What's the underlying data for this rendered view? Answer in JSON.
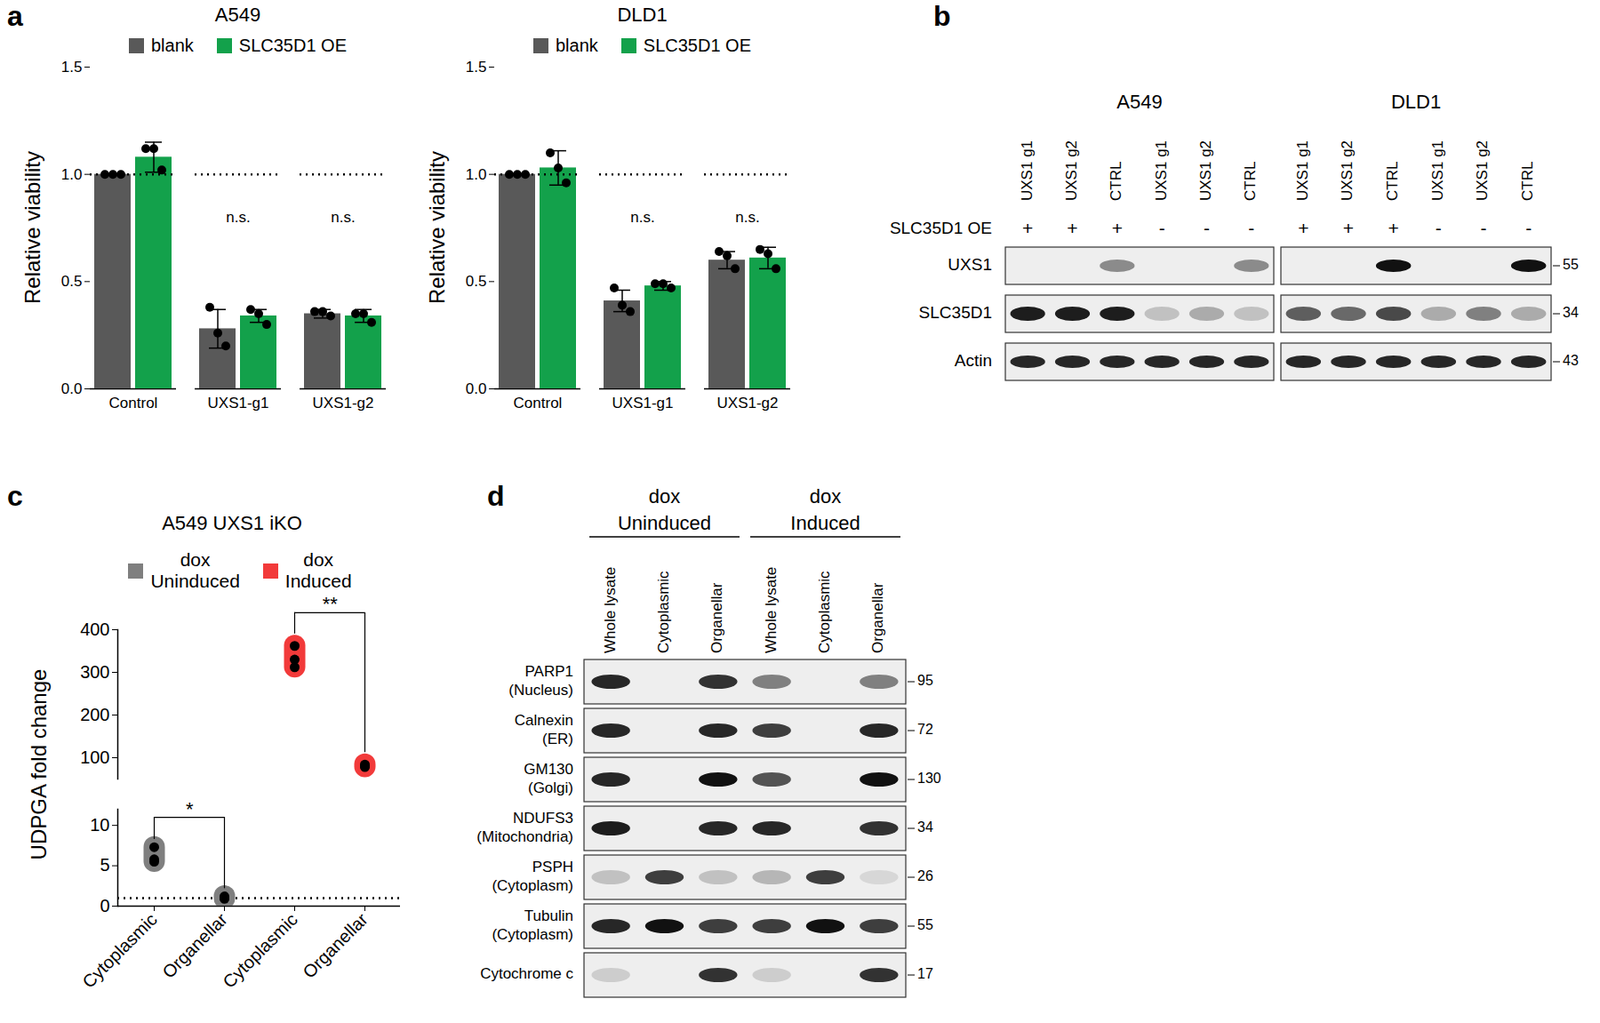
{
  "panels": [
    "a",
    "b",
    "c",
    "d"
  ],
  "chart_data": [
    {
      "type": "bar",
      "title": "A549",
      "legend": "top",
      "categories": [
        "Control",
        "UXS1-g1",
        "UXS1-g2"
      ],
      "series": [
        {
          "name": "blank",
          "color": "#595959",
          "values": [
            1.0,
            0.28,
            0.35
          ],
          "errors": [
            0,
            0.09,
            0.02
          ],
          "points": [
            [
              1,
              1,
              1
            ],
            [
              0.38,
              0.26,
              0.2
            ],
            [
              0.36,
              0.36,
              0.34
            ]
          ]
        },
        {
          "name": "SLC35D1 OE",
          "color": "#13a14b",
          "values": [
            1.08,
            0.34,
            0.34
          ],
          "errors": [
            0.07,
            0.03,
            0.03
          ],
          "points": [
            [
              1.12,
              1.12,
              1.02
            ],
            [
              0.37,
              0.35,
              0.3
            ],
            [
              0.35,
              0.35,
              0.31
            ]
          ]
        }
      ],
      "y_label": "Relative viability",
      "ylim": [
        0,
        1.5
      ],
      "yticks": [
        {
          "value": 0,
          "label": "0.0"
        },
        {
          "value": 0.5,
          "label": "0.5"
        },
        {
          "value": 1,
          "label": "1.0"
        },
        {
          "value": 1.5,
          "label": "1.5"
        }
      ],
      "reference_line": 1,
      "annotations": [
        {
          "text": "n.s.",
          "category": "UXS1-g1",
          "y": 0.8
        },
        {
          "text": "n.s.",
          "category": "UXS1-g2",
          "y": 0.8
        }
      ]
    },
    {
      "type": "bar",
      "title": "DLD1",
      "legend": "top",
      "categories": [
        "Control",
        "UXS1-g1",
        "UXS1-g2"
      ],
      "series": [
        {
          "name": "blank",
          "color": "#595959",
          "values": [
            1.0,
            0.41,
            0.6
          ],
          "errors": [
            0,
            0.05,
            0.04
          ],
          "points": [
            [
              1,
              1,
              1
            ],
            [
              0.47,
              0.39,
              0.36
            ],
            [
              0.64,
              0.62,
              0.56
            ]
          ]
        },
        {
          "name": "SLC35D1 OE",
          "color": "#13a14b",
          "values": [
            1.03,
            0.48,
            0.61
          ],
          "errors": [
            0.08,
            0.02,
            0.05
          ],
          "points": [
            [
              1.1,
              1.03,
              0.96
            ],
            [
              0.49,
              0.49,
              0.47
            ],
            [
              0.65,
              0.63,
              0.56
            ]
          ]
        }
      ],
      "y_label": "Relative viability",
      "ylim": [
        0,
        1.5
      ],
      "yticks": [
        {
          "value": 0,
          "label": "0.0"
        },
        {
          "value": 0.5,
          "label": "0.5"
        },
        {
          "value": 1,
          "label": "1.0"
        },
        {
          "value": 1.5,
          "label": "1.5"
        }
      ],
      "reference_line": 1,
      "annotations": [
        {
          "text": "n.s.",
          "category": "UXS1-g1",
          "y": 0.8
        },
        {
          "text": "n.s.",
          "category": "UXS1-g2",
          "y": 0.8
        }
      ]
    },
    {
      "type": "violin",
      "title": "A549 UXS1 iKO",
      "legend": "top",
      "categories": [
        "Cytoplasmic",
        "Organellar",
        "Cytoplasmic",
        "Organellar"
      ],
      "series": [
        {
          "name": "dox Uninduced",
          "color": "#7f7f7f",
          "points": [
            [
              7.3,
              5.8,
              5.5
            ],
            [
              1.2,
              1.0,
              0.9
            ],
            null,
            null
          ]
        },
        {
          "name": "dox Induced",
          "color": "#f23a3a",
          "points": [
            null,
            null,
            [
              362,
              330,
              312
            ],
            [
              78,
              80,
              84
            ]
          ]
        }
      ],
      "y_label": "UDPGA fold change",
      "segments": [
        {
          "ylim": [
            0,
            12
          ],
          "yticks": [
            0,
            5,
            10
          ]
        },
        {
          "ylim": [
            50,
            400
          ],
          "yticks": [
            100,
            200,
            300,
            400
          ]
        }
      ],
      "reference_line": 1,
      "annotations": [
        {
          "text": "*",
          "x": [
            0,
            1
          ],
          "y": 11
        },
        {
          "text": "**",
          "x": [
            2,
            3
          ],
          "y": 440
        }
      ]
    }
  ],
  "blots": [
    {
      "groups": [
        {
          "title": "A549",
          "lanes": [
            "UXS1 g1",
            "UXS1 g2",
            "CTRL",
            "UXS1 g1",
            "UXS1 g2",
            "CTRL"
          ],
          "bands": [
            [
              0,
              0,
              0.45,
              0,
              0,
              0.45
            ],
            [
              0.95,
              0.95,
              0.95,
              0.2,
              0.3,
              0.2
            ],
            [
              0.9,
              0.9,
              0.9,
              0.9,
              0.9,
              0.9
            ]
          ]
        },
        {
          "title": "DLD1",
          "lanes": [
            "UXS1 g1",
            "UXS1 g2",
            "CTRL",
            "UXS1 g1",
            "UXS1 g2",
            "CTRL"
          ],
          "bands": [
            [
              0,
              0,
              1,
              0,
              0,
              1
            ],
            [
              0.65,
              0.6,
              0.75,
              0.3,
              0.5,
              0.3
            ],
            [
              0.9,
              0.9,
              0.9,
              0.9,
              0.9,
              0.9
            ]
          ]
        }
      ],
      "condition": {
        "label": "SLC35D1 OE",
        "values": [
          "+",
          "+",
          "+",
          "-",
          "-",
          "-"
        ]
      },
      "rows": [
        "UXS1",
        "SLC35D1",
        "Actin"
      ],
      "markers": [
        55,
        34,
        43
      ]
    },
    {
      "headers": [
        {
          "text": [
            "dox",
            "Uninduced"
          ],
          "lanes": [
            0,
            1,
            2
          ]
        },
        {
          "text": [
            "dox",
            "Induced"
          ],
          "lanes": [
            3,
            4,
            5
          ]
        }
      ],
      "lanes": [
        "Whole lysate",
        "Cytoplasmic",
        "Organellar",
        "Whole lysate",
        "Cytoplasmic",
        "Organellar"
      ],
      "rows": [
        {
          "label": [
            "PARP1",
            "(Nucleus)"
          ],
          "marker": 95,
          "bands": [
            0.9,
            0,
            0.85,
            0.5,
            0,
            0.5
          ]
        },
        {
          "label": [
            "Calnexin",
            "(ER)"
          ],
          "marker": 72,
          "bands": [
            0.9,
            0,
            0.9,
            0.8,
            0,
            0.9
          ]
        },
        {
          "label": [
            "GM130",
            "(Golgi)"
          ],
          "marker": 130,
          "bands": [
            0.9,
            0,
            1,
            0.7,
            0,
            1
          ]
        },
        {
          "label": [
            "NDUFS3",
            "(Mitochondria)"
          ],
          "marker": 34,
          "bands": [
            0.95,
            0,
            0.9,
            0.9,
            0,
            0.85
          ]
        },
        {
          "label": [
            "PSPH",
            "(Cytoplasm)"
          ],
          "marker": 26,
          "bands": [
            0.2,
            0.8,
            0.2,
            0.25,
            0.8,
            0.1
          ]
        },
        {
          "label": [
            "Tubulin",
            "(Cytoplasm)"
          ],
          "marker": 55,
          "bands": [
            0.9,
            1,
            0.8,
            0.8,
            1,
            0.8
          ]
        },
        {
          "label": [
            "Cytochrome c"
          ],
          "marker": 17,
          "bands": [
            0.15,
            0,
            0.85,
            0.15,
            0,
            0.85
          ]
        }
      ]
    }
  ]
}
